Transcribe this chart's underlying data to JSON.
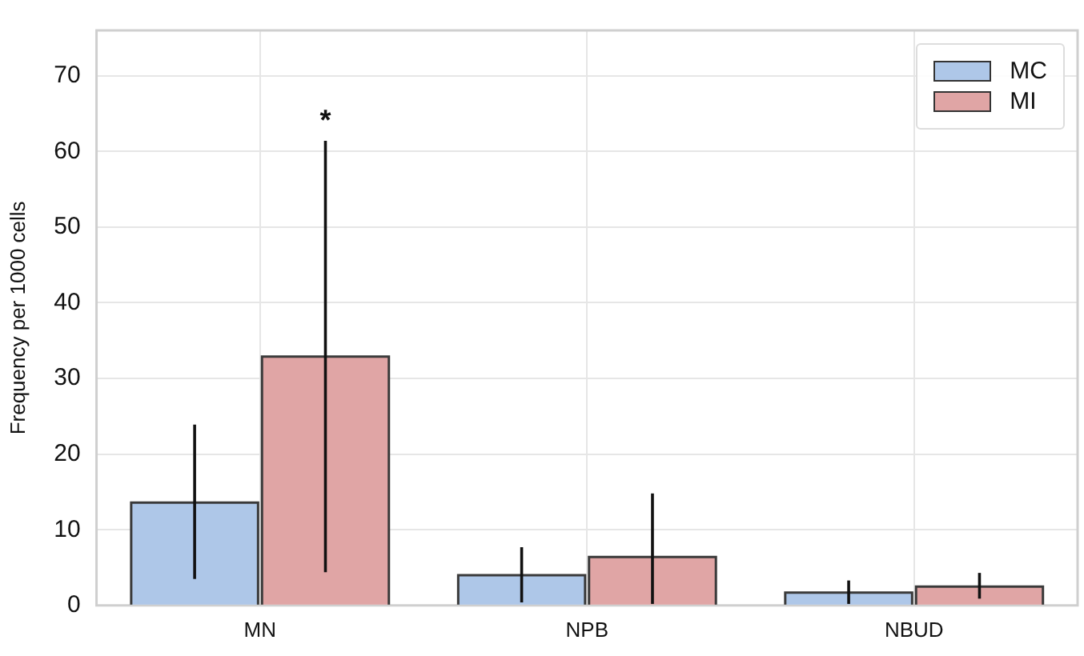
{
  "chart_data": {
    "type": "bar",
    "ylabel": "Frequency per 1000 cells",
    "categories": [
      "MN",
      "NPB",
      "NBUD"
    ],
    "series": [
      {
        "name": "MC",
        "color": "#aec7e8",
        "values": [
          13.6,
          4.0,
          1.7
        ],
        "errors": [
          [
            3.5,
            23.9
          ],
          [
            0.4,
            7.7
          ],
          [
            0.2,
            3.3
          ]
        ]
      },
      {
        "name": "MI",
        "color": "#e0a5a5",
        "values": [
          32.9,
          6.4,
          2.5
        ],
        "errors": [
          [
            4.4,
            61.4
          ],
          [
            0.2,
            14.8
          ],
          [
            0.9,
            4.3
          ]
        ]
      }
    ],
    "ylim": [
      0,
      76
    ],
    "yticks": [
      0,
      10,
      20,
      30,
      40,
      50,
      60,
      70
    ],
    "grid": true,
    "legend": "top right",
    "annotations": [
      "*"
    ]
  }
}
